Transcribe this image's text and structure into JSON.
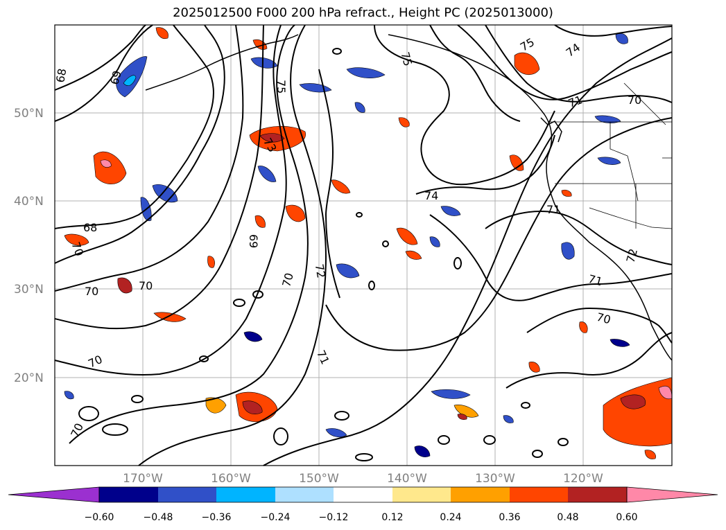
{
  "title": "2025012500 F000 200 hPa refract., Height PC (2025013000)",
  "lat_labels": [
    "50°N",
    "40°N",
    "30°N",
    "20°N"
  ],
  "lon_labels": [
    "170°W",
    "160°W",
    "150°W",
    "140°W",
    "130°W",
    "120°W"
  ],
  "colorbar": {
    "ticks": [
      "−0.60",
      "−0.48",
      "−0.36",
      "−0.24",
      "−0.12",
      "0.12",
      "0.24",
      "0.36",
      "0.48",
      "0.60"
    ],
    "colors": [
      "#9b30d0",
      "#00008b",
      "#3050c8",
      "#00b4ff",
      "#aee0ff",
      "#ffffff",
      "#ffe88c",
      "#ffa000",
      "#ff4500",
      "#b22222",
      "#ff88a8"
    ]
  },
  "contour_labels": [
    "68",
    "69",
    "75",
    "75",
    "75",
    "74",
    "71",
    "70",
    "73",
    "74",
    "71",
    "69",
    "68",
    "70",
    "72",
    "70",
    "70",
    "70",
    "71",
    "70",
    "70",
    "72",
    "71",
    "70"
  ]
}
